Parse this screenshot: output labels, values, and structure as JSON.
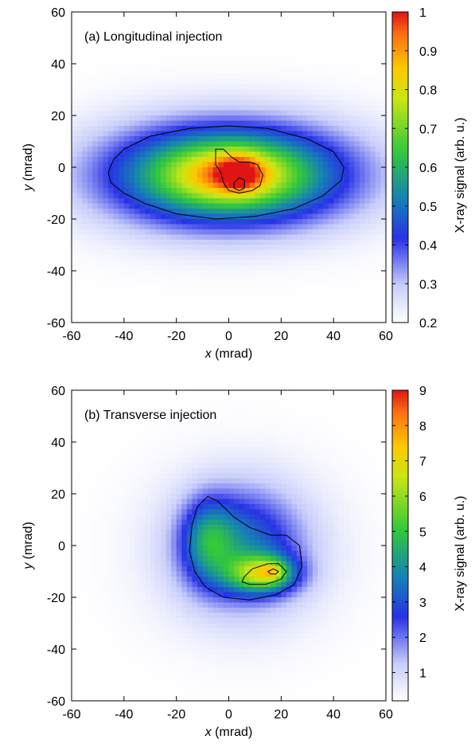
{
  "chart_data": [
    {
      "type": "heatmap",
      "title": "(a) Longitudinal injection",
      "xlabel_var": "x",
      "xlabel_unit": " (mrad)",
      "ylabel_var": "y",
      "ylabel_unit": " (mrad)",
      "xlim": [
        -60,
        60
      ],
      "ylim": [
        -60,
        60
      ],
      "x_ticks": [
        "-60",
        "-40",
        "-20",
        "0",
        "20",
        "40",
        "60"
      ],
      "y_ticks": [
        "-60",
        "-40",
        "-20",
        "0",
        "20",
        "40",
        "60"
      ],
      "colorbar": {
        "label": "X-ray signal (arb. u.)",
        "range": [
          0.2,
          1.0
        ],
        "ticks": [
          "0.2",
          "0.3",
          "0.4",
          "0.5",
          "0.6",
          "0.7",
          "0.8",
          "0.9",
          "1"
        ]
      },
      "blobs": [
        {
          "cx": 0,
          "cy": -3,
          "sx": 33,
          "sy": 14,
          "amp": 0.55
        },
        {
          "cx": 0,
          "cy": -3,
          "sx": 16,
          "sy": 7,
          "amp": 0.2
        },
        {
          "cx": 4,
          "cy": -2,
          "sx": 6,
          "sy": 5,
          "amp": 0.2
        }
      ],
      "baseline": 0.2,
      "contours": [
        {
          "level": 0.5,
          "points": [
            [
              -46,
              -2
            ],
            [
              -44,
              3
            ],
            [
              -40,
              7
            ],
            [
              -30,
              12
            ],
            [
              -15,
              15
            ],
            [
              0,
              16
            ],
            [
              15,
              15
            ],
            [
              30,
              11
            ],
            [
              40,
              6
            ],
            [
              44,
              0
            ],
            [
              43,
              -5
            ],
            [
              36,
              -11
            ],
            [
              25,
              -16
            ],
            [
              10,
              -19
            ],
            [
              -5,
              -20
            ],
            [
              -20,
              -18
            ],
            [
              -32,
              -14
            ],
            [
              -40,
              -10
            ],
            [
              -45,
              -6
            ]
          ]
        },
        {
          "level": 0.8,
          "points": [
            [
              -5,
              4
            ],
            [
              -5,
              7
            ],
            [
              -2,
              7
            ],
            [
              1,
              4
            ],
            [
              4,
              2
            ],
            [
              8,
              2
            ],
            [
              11,
              1
            ],
            [
              13,
              -3
            ],
            [
              12,
              -7
            ],
            [
              9,
              -9
            ],
            [
              4,
              -10
            ],
            [
              0,
              -9
            ],
            [
              -2,
              -6
            ],
            [
              -3,
              -2
            ],
            [
              -5,
              1
            ]
          ]
        },
        {
          "level": 0.9,
          "points": [
            [
              2,
              -6
            ],
            [
              4,
              -4
            ],
            [
              6,
              -5
            ],
            [
              6,
              -8
            ],
            [
              4,
              -9
            ],
            [
              2,
              -8
            ]
          ]
        }
      ]
    },
    {
      "type": "heatmap",
      "title": "(b) Transverse injection",
      "xlabel_var": "x",
      "xlabel_unit": " (mrad)",
      "ylabel_var": "y",
      "ylabel_unit": " (mrad)",
      "xlim": [
        -60,
        60
      ],
      "ylim": [
        -60,
        60
      ],
      "x_ticks": [
        "-60",
        "-40",
        "-20",
        "0",
        "20",
        "40",
        "60"
      ],
      "y_ticks": [
        "-60",
        "-40",
        "-20",
        "0",
        "20",
        "40",
        "60"
      ],
      "colorbar": {
        "label": "X-ray signal (arb. u.)",
        "range": [
          0.2,
          9.0
        ],
        "ticks": [
          "1",
          "2",
          "3",
          "4",
          "5",
          "6",
          "7",
          "8",
          "9"
        ]
      },
      "blobs": [
        {
          "cx": 5,
          "cy": -2,
          "sx": 22,
          "sy": 20,
          "amp": 1.6
        },
        {
          "cx": 5,
          "cy": 0,
          "sx": 15,
          "sy": 15,
          "amp": 1.8
        },
        {
          "cx": -8,
          "cy": 2,
          "sx": 7,
          "sy": 11,
          "amp": 2.2
        },
        {
          "cx": 13,
          "cy": -11,
          "sx": 9,
          "sy": 5,
          "amp": 4.2
        },
        {
          "cx": 17,
          "cy": -10,
          "sx": 3,
          "sy": 2.5,
          "amp": 1.2
        }
      ],
      "baseline": 0.2,
      "contours": [
        {
          "level": 4.0,
          "points": [
            [
              -14,
              8
            ],
            [
              -12,
              15
            ],
            [
              -8,
              19
            ],
            [
              -4,
              17
            ],
            [
              2,
              11
            ],
            [
              8,
              7
            ],
            [
              16,
              4
            ],
            [
              22,
              4
            ],
            [
              27,
              0
            ],
            [
              28,
              -8
            ],
            [
              25,
              -15
            ],
            [
              18,
              -19
            ],
            [
              8,
              -21
            ],
            [
              -2,
              -20
            ],
            [
              -9,
              -16
            ],
            [
              -13,
              -10
            ],
            [
              -15,
              -2
            ]
          ]
        },
        {
          "level": 7.0,
          "points": [
            [
              6,
              -12
            ],
            [
              9,
              -9
            ],
            [
              15,
              -7
            ],
            [
              19,
              -7
            ],
            [
              22,
              -10
            ],
            [
              20,
              -13
            ],
            [
              14,
              -15
            ],
            [
              8,
              -15
            ],
            [
              5,
              -14
            ]
          ]
        },
        {
          "level": 8.5,
          "points": [
            [
              15,
              -10
            ],
            [
              17,
              -9
            ],
            [
              19,
              -10
            ],
            [
              18,
              -11
            ],
            [
              16,
              -11
            ]
          ]
        }
      ]
    }
  ]
}
